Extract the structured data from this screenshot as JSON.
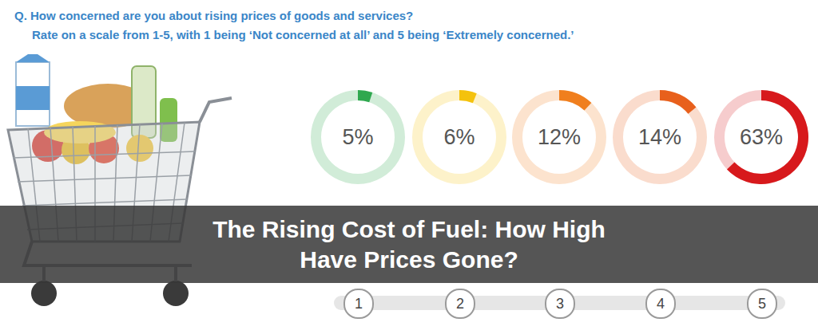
{
  "chart_data": {
    "type": "donut",
    "title": "Q. How concerned are you about rising prices of goods and services?",
    "subtitle": "Rate on a scale from 1-5, with 1 being ‘Not concerned at all’ and 5 being ‘Extremely concerned.’",
    "annotations": [
      "The Rising Cost of Fuel: How High Have Prices Gone?"
    ],
    "categories": [
      "1",
      "2",
      "3",
      "4",
      "5"
    ],
    "values": [
      5,
      6,
      12,
      14,
      63
    ],
    "value_labels": [
      "5%",
      "6%",
      "12%",
      "14%",
      "63%"
    ],
    "data_labels": true,
    "colors": [
      "#2fa84f",
      "#f4c20d",
      "#f07f1e",
      "#e8601c",
      "#d7191c"
    ],
    "ylim": [
      0,
      100
    ]
  }
}
